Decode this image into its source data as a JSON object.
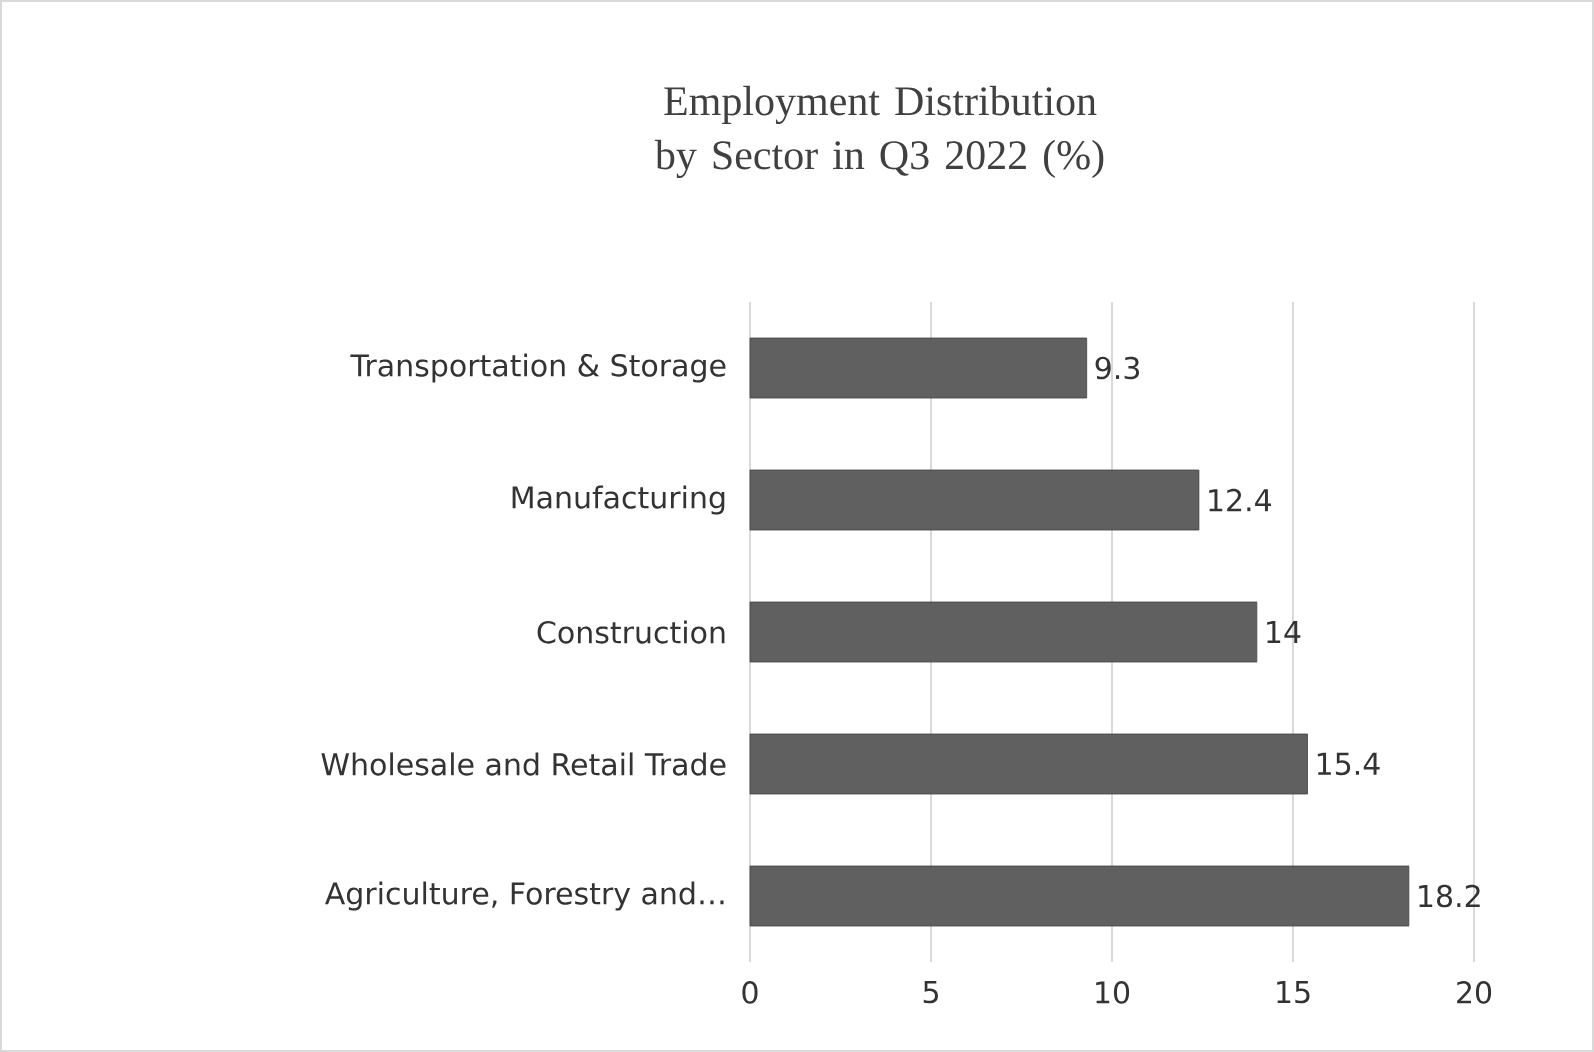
{
  "chart_data": {
    "type": "bar",
    "orientation": "horizontal",
    "title": "Employment Distribution by Sector in Q3 2022 (%)",
    "categories": [
      "Transportation & Storage",
      "Manufacturing",
      "Construction",
      "Wholesale and Retail Trade",
      "Agriculture, Forestry and…"
    ],
    "values": [
      9.3,
      12.4,
      14,
      15.4,
      18.2
    ],
    "color": "#606060",
    "xlim": [
      0,
      20
    ],
    "xticks": [
      0,
      5,
      10,
      15,
      20
    ],
    "grid": "x",
    "data_labels": true
  }
}
